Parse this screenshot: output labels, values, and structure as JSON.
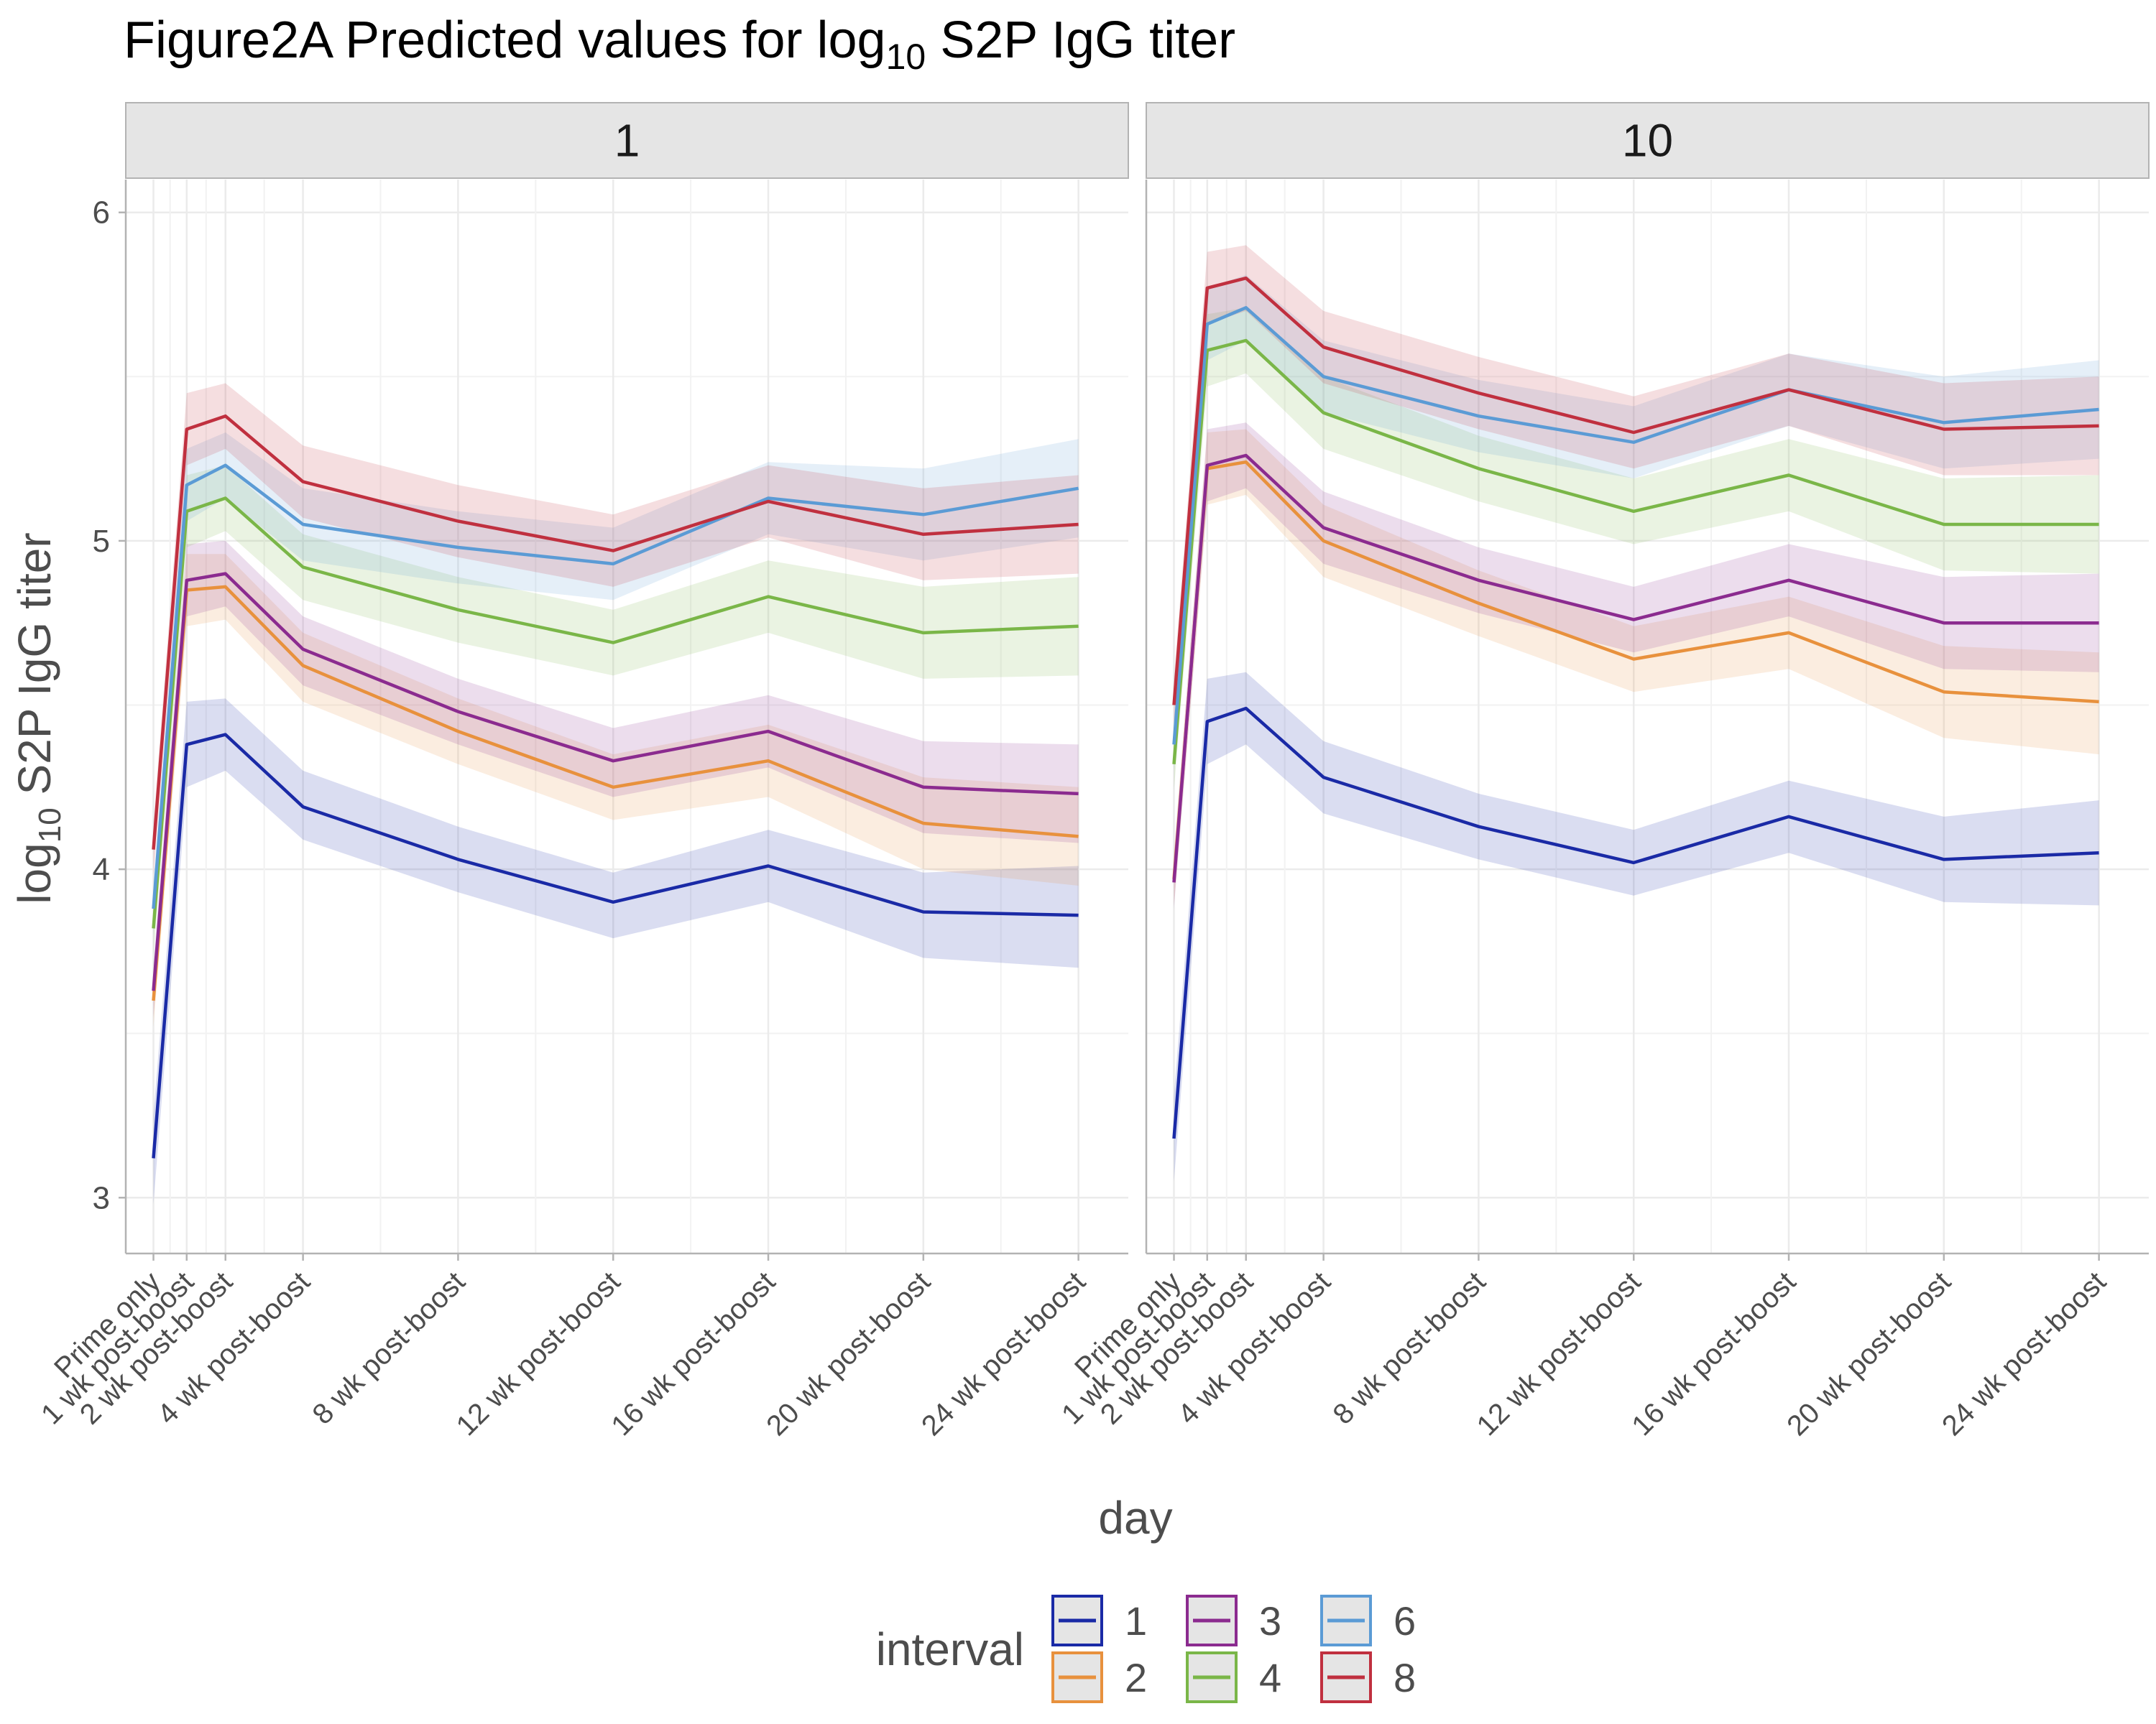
{
  "chart_data": {
    "type": "line",
    "title": {
      "prefix": "Figure2A Predicted values for log",
      "subscript": "10",
      "suffix": " S2P IgG titer"
    },
    "xlabel": "day",
    "ylabel": {
      "prefix": "log",
      "subscript": "10",
      "suffix": " S2P IgG titer"
    },
    "x": [
      1,
      7,
      14,
      28,
      56,
      84,
      112,
      140,
      168
    ],
    "x_tick_labels": [
      "Prime only",
      "1 wk post-boost",
      "2 wk post-boost",
      "4 wk post-boost",
      "8 wk post-boost",
      "12 wk post-boost",
      "16 wk post-boost",
      "20 wk post-boost",
      "24 wk post-boost"
    ],
    "xlim": [
      -4,
      177
    ],
    "ylim": [
      2.83,
      6.1
    ],
    "y_ticks": [
      3,
      4,
      5,
      6
    ],
    "y_tick_labels": [
      "3",
      "4",
      "5",
      "6"
    ],
    "grid": true,
    "legend": {
      "title": "interval",
      "position": "bottom",
      "entries": [
        "1",
        "2",
        "3",
        "4",
        "6",
        "8"
      ]
    },
    "panels": [
      {
        "label": "1",
        "series": [
          {
            "name": "1",
            "color": "#1a2aa6",
            "values": [
              3.12,
              4.38,
              4.41,
              4.19,
              4.03,
              3.9,
              4.01,
              3.87,
              3.86
            ],
            "lower": [
              2.98,
              4.25,
              4.3,
              4.09,
              3.93,
              3.79,
              3.9,
              3.73,
              3.7
            ],
            "upper": [
              3.25,
              4.51,
              4.52,
              4.3,
              4.13,
              3.99,
              4.12,
              3.99,
              4.01
            ]
          },
          {
            "name": "2",
            "color": "#e8913d",
            "values": [
              3.6,
              4.85,
              4.86,
              4.62,
              4.42,
              4.25,
              4.33,
              4.14,
              4.1
            ],
            "lower": [
              3.52,
              4.74,
              4.76,
              4.51,
              4.32,
              4.15,
              4.22,
              4.0,
              3.95
            ],
            "upper": [
              3.68,
              4.96,
              4.96,
              4.72,
              4.52,
              4.35,
              4.44,
              4.28,
              4.25
            ]
          },
          {
            "name": "3",
            "color": "#8b2b8f",
            "values": [
              3.63,
              4.88,
              4.9,
              4.67,
              4.48,
              4.33,
              4.42,
              4.25,
              4.23
            ],
            "lower": [
              3.55,
              4.77,
              4.8,
              4.56,
              4.38,
              4.22,
              4.31,
              4.11,
              4.08
            ],
            "upper": [
              3.71,
              4.99,
              5.0,
              4.77,
              4.58,
              4.43,
              4.53,
              4.39,
              4.38
            ]
          },
          {
            "name": "4",
            "color": "#7ab648",
            "values": [
              3.82,
              5.09,
              5.13,
              4.92,
              4.79,
              4.69,
              4.83,
              4.72,
              4.74
            ],
            "lower": [
              3.74,
              4.98,
              5.03,
              4.82,
              4.69,
              4.59,
              4.72,
              4.58,
              4.59
            ],
            "upper": [
              3.9,
              5.2,
              5.23,
              5.02,
              4.89,
              4.79,
              4.94,
              4.86,
              4.89
            ]
          },
          {
            "name": "6",
            "color": "#5b9bd5",
            "values": [
              3.88,
              5.17,
              5.23,
              5.05,
              4.98,
              4.93,
              5.13,
              5.08,
              5.16
            ],
            "lower": [
              3.8,
              5.06,
              5.13,
              4.94,
              4.87,
              4.82,
              5.02,
              4.94,
              5.01
            ],
            "upper": [
              3.96,
              5.28,
              5.33,
              5.16,
              5.09,
              5.04,
              5.24,
              5.22,
              5.31
            ]
          },
          {
            "name": "8",
            "color": "#c0303f",
            "values": [
              4.06,
              5.34,
              5.38,
              5.18,
              5.06,
              4.97,
              5.12,
              5.02,
              5.05
            ],
            "lower": [
              3.98,
              5.23,
              5.28,
              5.07,
              4.95,
              4.86,
              5.01,
              4.88,
              4.9
            ],
            "upper": [
              4.14,
              5.45,
              5.48,
              5.29,
              5.17,
              5.08,
              5.23,
              5.16,
              5.2
            ]
          }
        ]
      },
      {
        "label": "10",
        "series": [
          {
            "name": "1",
            "color": "#1a2aa6",
            "values": [
              3.18,
              4.45,
              4.49,
              4.28,
              4.13,
              4.02,
              4.16,
              4.03,
              4.05
            ],
            "lower": [
              3.05,
              4.32,
              4.38,
              4.17,
              4.03,
              3.92,
              4.05,
              3.9,
              3.89
            ],
            "upper": [
              3.31,
              4.58,
              4.6,
              4.39,
              4.23,
              4.12,
              4.27,
              4.16,
              4.21
            ]
          },
          {
            "name": "2",
            "color": "#e8913d",
            "values": [
              3.97,
              5.22,
              5.24,
              5.0,
              4.81,
              4.64,
              4.72,
              4.54,
              4.51
            ],
            "lower": [
              3.89,
              5.11,
              5.14,
              4.89,
              4.71,
              4.54,
              4.61,
              4.4,
              4.35
            ],
            "upper": [
              4.05,
              5.33,
              5.34,
              5.11,
              4.91,
              4.74,
              4.83,
              4.68,
              4.66
            ]
          },
          {
            "name": "3",
            "color": "#8b2b8f",
            "values": [
              3.96,
              5.23,
              5.26,
              5.04,
              4.88,
              4.76,
              4.88,
              4.75,
              4.75
            ],
            "lower": [
              3.88,
              5.12,
              5.16,
              4.93,
              4.78,
              4.66,
              4.77,
              4.61,
              4.6
            ],
            "upper": [
              4.04,
              5.34,
              5.36,
              5.15,
              4.98,
              4.86,
              4.99,
              4.89,
              4.9
            ]
          },
          {
            "name": "4",
            "color": "#7ab648",
            "values": [
              4.32,
              5.58,
              5.61,
              5.39,
              5.22,
              5.09,
              5.2,
              5.05,
              5.05
            ],
            "lower": [
              4.24,
              5.47,
              5.51,
              5.28,
              5.12,
              4.99,
              5.09,
              4.91,
              4.9
            ],
            "upper": [
              4.4,
              5.69,
              5.71,
              5.5,
              5.32,
              5.19,
              5.31,
              5.19,
              5.2
            ]
          },
          {
            "name": "6",
            "color": "#5b9bd5",
            "values": [
              4.38,
              5.66,
              5.71,
              5.5,
              5.38,
              5.3,
              5.46,
              5.36,
              5.4
            ],
            "lower": [
              4.3,
              5.55,
              5.61,
              5.39,
              5.27,
              5.19,
              5.35,
              5.22,
              5.25
            ],
            "upper": [
              4.46,
              5.77,
              5.81,
              5.61,
              5.49,
              5.41,
              5.57,
              5.5,
              5.55
            ]
          },
          {
            "name": "8",
            "color": "#c0303f",
            "values": [
              4.5,
              5.77,
              5.8,
              5.59,
              5.45,
              5.33,
              5.46,
              5.34,
              5.35
            ],
            "lower": [
              4.42,
              5.66,
              5.7,
              5.48,
              5.34,
              5.22,
              5.35,
              5.2,
              5.2
            ],
            "upper": [
              4.58,
              5.88,
              5.9,
              5.7,
              5.56,
              5.44,
              5.57,
              5.48,
              5.5
            ]
          }
        ]
      }
    ]
  }
}
